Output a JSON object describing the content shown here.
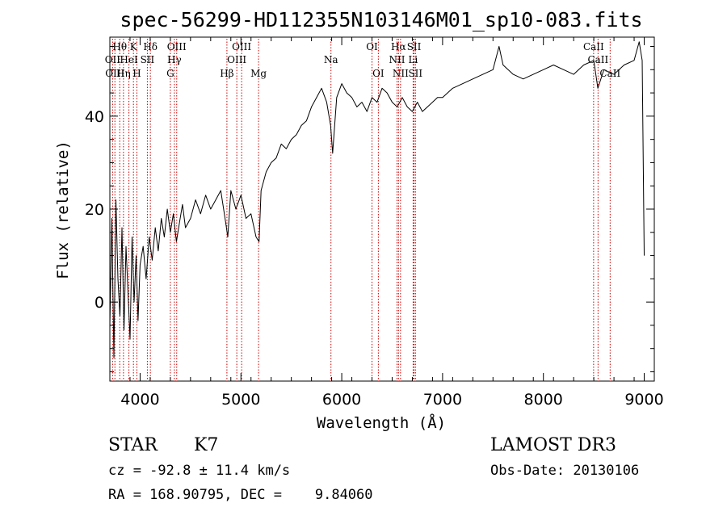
{
  "chart_data": {
    "type": "line",
    "title": "spec-56299-HD112355N103146M01_sp10-083.fits",
    "xlabel": "Wavelength (Å)",
    "ylabel": "Flux (relative)",
    "xlim": [
      3700,
      9100
    ],
    "ylim": [
      -17,
      57
    ],
    "xticks": [
      4000,
      5000,
      6000,
      7000,
      8000,
      9000
    ],
    "xtick_labels": [
      "4000",
      "5000",
      "6000",
      "7000",
      "8000",
      "9000"
    ],
    "yticks": [
      0,
      20,
      40
    ],
    "ytick_labels": [
      "0",
      "20",
      "40"
    ],
    "series": [
      {
        "name": "spectrum",
        "x": [
          3700,
          3720,
          3740,
          3760,
          3780,
          3800,
          3820,
          3840,
          3860,
          3880,
          3900,
          3920,
          3940,
          3960,
          3980,
          4000,
          4030,
          4060,
          4090,
          4120,
          4150,
          4180,
          4210,
          4240,
          4270,
          4300,
          4330,
          4360,
          4390,
          4420,
          4450,
          4500,
          4550,
          4600,
          4650,
          4700,
          4750,
          4800,
          4850,
          4870,
          4900,
          4950,
          5000,
          5050,
          5100,
          5150,
          5180,
          5200,
          5250,
          5300,
          5350,
          5400,
          5450,
          5500,
          5550,
          5600,
          5650,
          5700,
          5750,
          5800,
          5850,
          5890,
          5910,
          5950,
          6000,
          6050,
          6100,
          6150,
          6200,
          6250,
          6300,
          6350,
          6400,
          6450,
          6500,
          6550,
          6600,
          6650,
          6700,
          6750,
          6800,
          6850,
          6900,
          6950,
          7000,
          7100,
          7200,
          7300,
          7400,
          7500,
          7560,
          7600,
          7650,
          7700,
          7800,
          7900,
          8000,
          8100,
          8200,
          8300,
          8400,
          8500,
          8540,
          8600,
          8700,
          8800,
          8900,
          8950,
          8980,
          9000
        ],
        "y": [
          -5,
          18,
          -12,
          22,
          5,
          -3,
          16,
          -6,
          12,
          2,
          -8,
          14,
          0,
          10,
          -4,
          8,
          12,
          5,
          14,
          9,
          16,
          11,
          18,
          14,
          20,
          15,
          19,
          13,
          17,
          21,
          16,
          18,
          22,
          19,
          23,
          20,
          22,
          24,
          17,
          14,
          24,
          20,
          23,
          18,
          19,
          14,
          13,
          24,
          28,
          30,
          31,
          34,
          33,
          35,
          36,
          38,
          39,
          42,
          44,
          46,
          43,
          38,
          32,
          44,
          47,
          45,
          44,
          42,
          43,
          41,
          44,
          43,
          46,
          45,
          43,
          42,
          44,
          42,
          41,
          43,
          41,
          42,
          43,
          44,
          44,
          46,
          47,
          48,
          49,
          50,
          55,
          51,
          50,
          49,
          48,
          49,
          50,
          51,
          50,
          49,
          51,
          52,
          46,
          50,
          49,
          51,
          52,
          56,
          52,
          10
        ]
      }
    ],
    "line_markers": [
      {
        "label": "Hθ",
        "x": 3798,
        "row": 1
      },
      {
        "label": "K",
        "x": 3934,
        "row": 1
      },
      {
        "label": "Hδ",
        "x": 4102,
        "row": 1
      },
      {
        "label": "OIII",
        "x": 4363,
        "row": 1
      },
      {
        "label": "OIII",
        "x": 5007,
        "row": 1
      },
      {
        "label": "OI",
        "x": 6300,
        "row": 1
      },
      {
        "label": "Hα",
        "x": 6563,
        "row": 1
      },
      {
        "label": "SII",
        "x": 6717,
        "row": 1
      },
      {
        "label": "CaII",
        "x": 8498,
        "row": 1
      },
      {
        "label": "OII",
        "x": 3727,
        "row": 2
      },
      {
        "label": "HeI",
        "x": 3889,
        "row": 2
      },
      {
        "label": "SII",
        "x": 4072,
        "row": 2
      },
      {
        "label": "Hγ",
        "x": 4340,
        "row": 2
      },
      {
        "label": "OIII",
        "x": 4959,
        "row": 2
      },
      {
        "label": "Na",
        "x": 5893,
        "row": 2
      },
      {
        "label": "NII",
        "x": 6548,
        "row": 2
      },
      {
        "label": "Li",
        "x": 6708,
        "row": 2
      },
      {
        "label": "CaII",
        "x": 8542,
        "row": 2
      },
      {
        "label": "OIII",
        "x": 3750,
        "row": 3
      },
      {
        "label": "Hη",
        "x": 3835,
        "row": 3
      },
      {
        "label": "H",
        "x": 3968,
        "row": 3
      },
      {
        "label": "G",
        "x": 4300,
        "row": 3
      },
      {
        "label": "Hβ",
        "x": 4861,
        "row": 3
      },
      {
        "label": "Mg",
        "x": 5175,
        "row": 3
      },
      {
        "label": "OI",
        "x": 6363,
        "row": 3
      },
      {
        "label": "NII",
        "x": 6583,
        "row": 3
      },
      {
        "label": "SII",
        "x": 6731,
        "row": 3
      },
      {
        "label": "CaII",
        "x": 8662,
        "row": 3
      }
    ]
  },
  "info": {
    "class_label": "STAR",
    "subclass": "K7",
    "survey": "LAMOST DR3",
    "redshift_text": "cz = -92.8 ± 11.4 km/s",
    "obs_date_text": "Obs-Date: 20130106",
    "coords_text": "RA = 168.90795, DEC =    9.84060"
  },
  "colors": {
    "spectrum": "#000000",
    "marker": "#cc0000",
    "axis": "#000000"
  }
}
